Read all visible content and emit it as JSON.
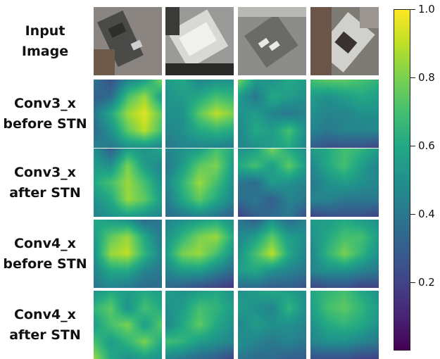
{
  "rows": [
    {
      "label_lines": [
        "Input",
        "Image"
      ],
      "kind": "photo"
    },
    {
      "label_lines": [
        "Conv3_x",
        "before STN"
      ],
      "kind": "heatmap"
    },
    {
      "label_lines": [
        "Conv3_x",
        "after STN"
      ],
      "kind": "heatmap"
    },
    {
      "label_lines": [
        "Conv4_x",
        "before STN"
      ],
      "kind": "heatmap"
    },
    {
      "label_lines": [
        "Conv4_x",
        "after STN"
      ],
      "kind": "heatmap"
    }
  ],
  "colorbar": {
    "colormap": "viridis",
    "range": [
      0.0,
      1.0
    ],
    "ticks": [
      "0.2",
      "0.4",
      "0.6",
      "0.8",
      "1.0"
    ]
  },
  "heatmaps": {
    "values": [
      [
        [
          [
            0.4,
            0.25,
            0.45,
            0.55,
            0.8
          ],
          [
            0.3,
            0.35,
            0.7,
            0.85,
            0.55
          ],
          [
            0.4,
            0.6,
            0.85,
            0.95,
            0.75
          ],
          [
            0.35,
            0.5,
            0.75,
            0.9,
            0.7
          ],
          [
            0.45,
            0.4,
            0.5,
            0.5,
            0.45
          ]
        ],
        [
          [
            0.5,
            0.3,
            0.55,
            0.5,
            0.6
          ],
          [
            0.55,
            0.5,
            0.8,
            0.55,
            0.45
          ],
          [
            0.6,
            0.7,
            0.85,
            0.7,
            0.5
          ],
          [
            0.5,
            0.6,
            0.85,
            0.75,
            0.55
          ],
          [
            0.45,
            0.5,
            0.55,
            0.5,
            0.45
          ]
        ],
        [
          [
            0.6,
            0.55,
            0.5,
            0.35,
            0.4
          ],
          [
            0.55,
            0.75,
            0.85,
            0.6,
            0.4
          ],
          [
            0.5,
            0.85,
            0.9,
            0.65,
            0.45
          ],
          [
            0.45,
            0.6,
            0.6,
            0.45,
            0.4
          ],
          [
            0.4,
            0.45,
            0.4,
            0.35,
            0.35
          ]
        ],
        [
          [
            0.5,
            0.6,
            0.55,
            0.6,
            0.55
          ],
          [
            0.65,
            0.75,
            0.5,
            0.7,
            0.6
          ],
          [
            0.55,
            0.7,
            0.8,
            0.55,
            0.75
          ],
          [
            0.7,
            0.55,
            0.65,
            0.8,
            0.6
          ],
          [
            0.85,
            0.6,
            0.5,
            0.55,
            0.5
          ]
        ]
      ],
      [
        [
          [
            0.55,
            0.6,
            0.45,
            0.5,
            0.5
          ],
          [
            0.5,
            0.55,
            0.6,
            0.7,
            0.65
          ],
          [
            0.5,
            0.5,
            0.75,
            0.9,
            0.8
          ],
          [
            0.45,
            0.5,
            0.6,
            0.65,
            0.6
          ],
          [
            0.4,
            0.45,
            0.45,
            0.45,
            0.4
          ]
        ],
        [
          [
            0.45,
            0.5,
            0.55,
            0.7,
            0.6
          ],
          [
            0.4,
            0.55,
            0.75,
            0.8,
            0.55
          ],
          [
            0.45,
            0.65,
            0.85,
            0.7,
            0.5
          ],
          [
            0.4,
            0.6,
            0.75,
            0.6,
            0.45
          ],
          [
            0.35,
            0.4,
            0.45,
            0.4,
            0.3
          ]
        ],
        [
          [
            0.45,
            0.5,
            0.55,
            0.6,
            0.5
          ],
          [
            0.5,
            0.65,
            0.8,
            0.85,
            0.6
          ],
          [
            0.55,
            0.8,
            0.85,
            0.7,
            0.5
          ],
          [
            0.45,
            0.55,
            0.55,
            0.45,
            0.35
          ],
          [
            0.35,
            0.3,
            0.25,
            0.2,
            0.15
          ]
        ],
        [
          [
            0.55,
            0.5,
            0.55,
            0.6,
            0.5
          ],
          [
            0.5,
            0.55,
            0.7,
            0.65,
            0.55
          ],
          [
            0.45,
            0.6,
            0.75,
            0.6,
            0.5
          ],
          [
            0.7,
            0.65,
            0.55,
            0.5,
            0.45
          ],
          [
            0.45,
            0.4,
            0.35,
            0.3,
            0.2
          ]
        ]
      ],
      [
        [
          [
            0.8,
            0.55,
            0.5,
            0.6,
            0.55
          ],
          [
            0.55,
            0.4,
            0.6,
            0.55,
            0.5
          ],
          [
            0.5,
            0.55,
            0.45,
            0.4,
            0.45
          ],
          [
            0.45,
            0.6,
            0.55,
            0.7,
            0.5
          ],
          [
            0.45,
            0.5,
            0.55,
            0.6,
            0.45
          ]
        ],
        [
          [
            0.5,
            0.55,
            0.8,
            0.6,
            0.5
          ],
          [
            0.6,
            0.7,
            0.55,
            0.75,
            0.55
          ],
          [
            0.4,
            0.35,
            0.55,
            0.5,
            0.45
          ],
          [
            0.35,
            0.4,
            0.3,
            0.45,
            0.4
          ],
          [
            0.2,
            0.3,
            0.35,
            0.4,
            0.25
          ]
        ],
        [
          [
            0.4,
            0.3,
            0.5,
            0.35,
            0.45
          ],
          [
            0.45,
            0.55,
            0.75,
            0.55,
            0.5
          ],
          [
            0.5,
            0.7,
            0.9,
            0.6,
            0.45
          ],
          [
            0.55,
            0.6,
            0.5,
            0.45,
            0.4
          ],
          [
            0.35,
            0.35,
            0.3,
            0.3,
            0.25
          ]
        ],
        [
          [
            0.5,
            0.55,
            0.6,
            0.55,
            0.5
          ],
          [
            0.55,
            0.5,
            0.45,
            0.65,
            0.5
          ],
          [
            0.45,
            0.55,
            0.5,
            0.5,
            0.45
          ],
          [
            0.5,
            0.45,
            0.4,
            0.45,
            0.4
          ],
          [
            0.4,
            0.35,
            0.35,
            0.3,
            0.3
          ]
        ]
      ],
      [
        [
          [
            0.7,
            0.75,
            0.75,
            0.7,
            0.65
          ],
          [
            0.55,
            0.5,
            0.55,
            0.6,
            0.55
          ],
          [
            0.5,
            0.45,
            0.45,
            0.5,
            0.5
          ],
          [
            0.45,
            0.4,
            0.45,
            0.45,
            0.45
          ],
          [
            0.3,
            0.25,
            0.25,
            0.25,
            0.2
          ]
        ],
        [
          [
            0.55,
            0.6,
            0.7,
            0.65,
            0.55
          ],
          [
            0.45,
            0.6,
            0.7,
            0.55,
            0.45
          ],
          [
            0.4,
            0.5,
            0.55,
            0.5,
            0.45
          ],
          [
            0.45,
            0.45,
            0.4,
            0.4,
            0.4
          ],
          [
            0.2,
            0.25,
            0.25,
            0.25,
            0.2
          ]
        ],
        [
          [
            0.55,
            0.55,
            0.6,
            0.55,
            0.5
          ],
          [
            0.5,
            0.6,
            0.7,
            0.7,
            0.55
          ],
          [
            0.45,
            0.65,
            0.8,
            0.65,
            0.5
          ],
          [
            0.45,
            0.5,
            0.5,
            0.45,
            0.4
          ],
          [
            0.2,
            0.25,
            0.25,
            0.2,
            0.2
          ]
        ],
        [
          [
            0.6,
            0.65,
            0.7,
            0.6,
            0.5
          ],
          [
            0.55,
            0.7,
            0.75,
            0.65,
            0.55
          ],
          [
            0.5,
            0.6,
            0.65,
            0.6,
            0.5
          ],
          [
            0.45,
            0.5,
            0.5,
            0.45,
            0.4
          ],
          [
            0.25,
            0.25,
            0.25,
            0.2,
            0.2
          ]
        ]
      ]
    ]
  },
  "photos": [
    {
      "tone": "#8a8580"
    },
    {
      "tone": "#9a9a98"
    },
    {
      "tone": "#8c8c88"
    },
    {
      "tone": "#7e7a74"
    }
  ]
}
